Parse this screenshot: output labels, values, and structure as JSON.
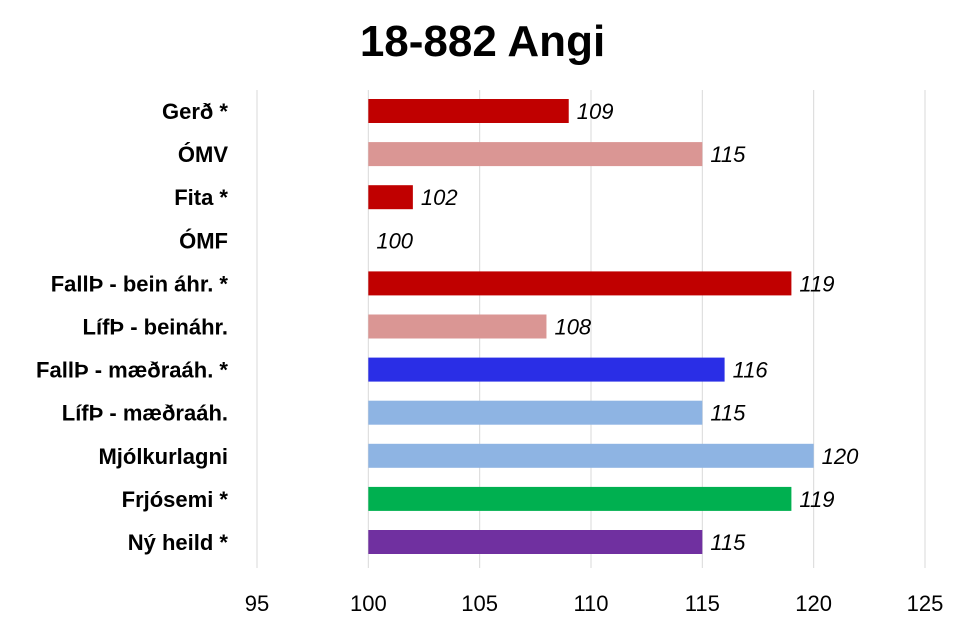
{
  "chart_data": {
    "type": "bar",
    "orientation": "horizontal",
    "title": "18-882 Angi",
    "categories": [
      "Gerð *",
      "ÓMV",
      "Fita *",
      "ÓMF",
      "FallÞ - bein áhr. *",
      "LífÞ - beináhr.",
      "FallÞ - mæðraáh. *",
      "LífÞ - mæðraáh.",
      "Mjólkurlagni",
      "Frjósemi *",
      "Ný heild *"
    ],
    "values": [
      109,
      115,
      102,
      100,
      119,
      108,
      116,
      115,
      120,
      119,
      115
    ],
    "colors": [
      "#c00000",
      "#da9694",
      "#c00000",
      "#da9694",
      "#c00000",
      "#da9694",
      "#2a2ee6",
      "#8eb4e3",
      "#8eb4e3",
      "#00b050",
      "#7030a0"
    ],
    "xlim": [
      95,
      125
    ],
    "xticks": [
      95,
      100,
      105,
      110,
      115,
      120,
      125
    ],
    "base": 100,
    "grid": true,
    "legend": "none"
  }
}
